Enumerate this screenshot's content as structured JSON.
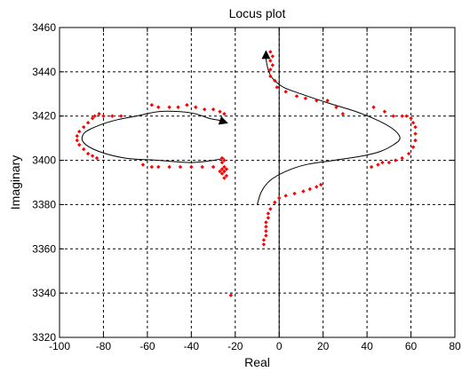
{
  "chart_data": {
    "type": "scatter",
    "title": "Locus plot",
    "xlabel": "Real",
    "ylabel": "Imaginary",
    "xlim": [
      -100,
      80
    ],
    "ylim": [
      3320,
      3460
    ],
    "x_ticks": [
      -100,
      -80,
      -60,
      -40,
      -20,
      0,
      20,
      40,
      60,
      80
    ],
    "y_ticks": [
      3320,
      3340,
      3360,
      3380,
      3400,
      3420,
      3440,
      3460
    ],
    "x_tick_labels": [
      "-100",
      "-80",
      "-60",
      "-40",
      "-20",
      "0",
      "20",
      "40",
      "60",
      "80"
    ],
    "y_tick_labels": [
      "3320",
      "3340",
      "3360",
      "3380",
      "3400",
      "3420",
      "3440",
      "3460"
    ],
    "grid": true,
    "reference_line_x": 0,
    "colors": {
      "markers": "#ff0000",
      "curve": "#000000",
      "grid": "#000000"
    },
    "series": [
      {
        "kind": "markers",
        "points": [
          [
            -84,
            3420
          ],
          [
            -82,
            3421
          ],
          [
            -80,
            3420
          ],
          [
            -76,
            3420
          ],
          [
            -72,
            3420
          ],
          [
            -85,
            3419
          ],
          [
            -87,
            3417
          ],
          [
            -89,
            3415
          ],
          [
            -91,
            3413
          ],
          [
            -92,
            3411
          ],
          [
            -92,
            3409
          ],
          [
            -91,
            3407
          ],
          [
            -89,
            3405
          ],
          [
            -87,
            3403
          ],
          [
            -85,
            3402
          ],
          [
            -83,
            3401
          ],
          [
            -58,
            3425
          ],
          [
            -55,
            3424
          ],
          [
            -50,
            3424
          ],
          [
            -46,
            3424
          ],
          [
            -42,
            3425
          ],
          [
            -38,
            3424
          ],
          [
            -34,
            3423
          ],
          [
            -30,
            3423
          ],
          [
            -27,
            3422
          ],
          [
            -25,
            3421
          ],
          [
            -62,
            3398
          ],
          [
            -58,
            3397
          ],
          [
            -55,
            3397
          ],
          [
            -50,
            3397
          ],
          [
            -45,
            3397
          ],
          [
            -40,
            3397
          ],
          [
            -35,
            3397
          ],
          [
            -30,
            3397
          ],
          [
            -26,
            3401
          ],
          [
            -25,
            3400
          ],
          [
            -26,
            3399
          ],
          [
            -25,
            3397
          ],
          [
            -26,
            3396
          ],
          [
            -24,
            3396
          ],
          [
            -27,
            3395
          ],
          [
            -25,
            3395
          ],
          [
            -26,
            3394
          ],
          [
            -24,
            3393
          ],
          [
            -25,
            3392
          ],
          [
            -22,
            3339
          ],
          [
            -4,
            3449
          ],
          [
            -3,
            3447
          ],
          [
            -4,
            3445
          ],
          [
            -3,
            3443
          ],
          [
            -4,
            3441
          ],
          [
            -4,
            3438
          ],
          [
            -2,
            3436
          ],
          [
            -1,
            3433
          ],
          [
            3,
            3431
          ],
          [
            8,
            3429
          ],
          [
            12,
            3428
          ],
          [
            17,
            3427
          ],
          [
            22,
            3427
          ],
          [
            26,
            3424
          ],
          [
            29,
            3421
          ],
          [
            19,
            3389
          ],
          [
            17,
            3388
          ],
          [
            14,
            3387
          ],
          [
            11,
            3386
          ],
          [
            7,
            3385
          ],
          [
            3,
            3384
          ],
          [
            0,
            3383
          ],
          [
            -2,
            3381
          ],
          [
            -4,
            3378
          ],
          [
            -5,
            3376
          ],
          [
            -5,
            3374
          ],
          [
            -6,
            3372
          ],
          [
            -6,
            3370
          ],
          [
            -6,
            3368
          ],
          [
            -6,
            3366
          ],
          [
            -7,
            3364
          ],
          [
            -7,
            3362
          ],
          [
            43,
            3424
          ],
          [
            48,
            3422
          ],
          [
            52,
            3420
          ],
          [
            56,
            3420
          ],
          [
            58,
            3420
          ],
          [
            60,
            3419
          ],
          [
            61,
            3417
          ],
          [
            62,
            3415
          ],
          [
            62,
            3412
          ],
          [
            62,
            3409
          ],
          [
            61,
            3406
          ],
          [
            59,
            3403
          ],
          [
            56,
            3401
          ],
          [
            53,
            3400
          ],
          [
            50,
            3399
          ],
          [
            47,
            3399
          ],
          [
            45,
            3398
          ],
          [
            42,
            3397
          ]
        ]
      },
      {
        "kind": "curve",
        "arrow_at_end": true,
        "points": [
          [
            -25,
            3401
          ],
          [
            -30,
            3400
          ],
          [
            -40,
            3399
          ],
          [
            -55,
            3400
          ],
          [
            -70,
            3401
          ],
          [
            -82,
            3404
          ],
          [
            -89,
            3408
          ],
          [
            -89,
            3412
          ],
          [
            -84,
            3415
          ],
          [
            -75,
            3418
          ],
          [
            -65,
            3420
          ],
          [
            -55,
            3422
          ],
          [
            -45,
            3422
          ],
          [
            -38,
            3421
          ],
          [
            -32,
            3419
          ],
          [
            -27,
            3418
          ],
          [
            -24,
            3417
          ]
        ]
      },
      {
        "kind": "curve",
        "arrow_at_end": true,
        "points": [
          [
            -10,
            3380
          ],
          [
            -8,
            3386
          ],
          [
            -4,
            3391
          ],
          [
            3,
            3395
          ],
          [
            12,
            3398
          ],
          [
            25,
            3400
          ],
          [
            38,
            3402
          ],
          [
            46,
            3404
          ],
          [
            52,
            3407
          ],
          [
            55,
            3410
          ],
          [
            52,
            3414
          ],
          [
            45,
            3418
          ],
          [
            35,
            3422
          ],
          [
            22,
            3426
          ],
          [
            10,
            3430
          ],
          [
            2,
            3433
          ],
          [
            -3,
            3437
          ],
          [
            -5,
            3441
          ],
          [
            -6,
            3446
          ],
          [
            -6,
            3449
          ]
        ]
      }
    ]
  }
}
